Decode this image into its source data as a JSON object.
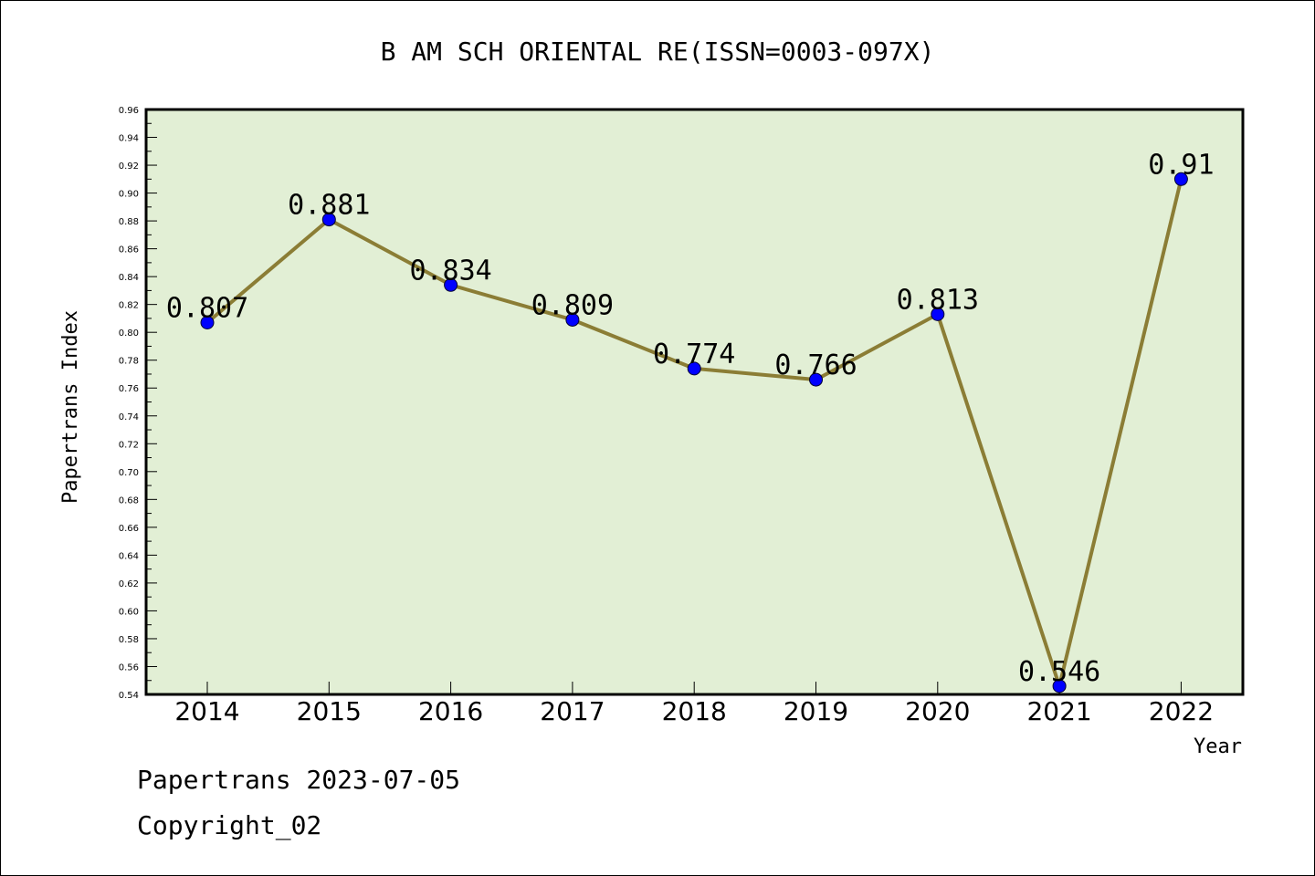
{
  "chart_data": {
    "type": "line",
    "title": "B AM SCH ORIENTAL RE(ISSN=0003-097X)",
    "xlabel": "Year",
    "ylabel": "Papertrans Index",
    "categories": [
      "2014",
      "2015",
      "2016",
      "2017",
      "2018",
      "2019",
      "2020",
      "2021",
      "2022"
    ],
    "values": [
      0.807,
      0.881,
      0.834,
      0.809,
      0.774,
      0.766,
      0.813,
      0.546,
      0.91
    ],
    "data_labels": [
      "0.807",
      "0.881",
      "0.834",
      "0.809",
      "0.774",
      "0.766",
      "0.813",
      "0.546",
      "0.91"
    ],
    "ylim": [
      0.54,
      0.96
    ],
    "ytick_labels": [
      "0.54",
      "0.56",
      "0.58",
      "0.60",
      "0.62",
      "0.64",
      "0.66",
      "0.68",
      "0.70",
      "0.72",
      "0.74",
      "0.76",
      "0.78",
      "0.80",
      "0.82",
      "0.84",
      "0.86",
      "0.88",
      "0.90",
      "0.92",
      "0.94",
      "0.96"
    ],
    "grid": false,
    "colors": {
      "plot_background": "#e2efd5",
      "line": "#8b7d35",
      "marker": "#0000ff"
    }
  },
  "footer": {
    "line1": "Papertrans 2023-07-05",
    "line2": "Copyright_02"
  }
}
